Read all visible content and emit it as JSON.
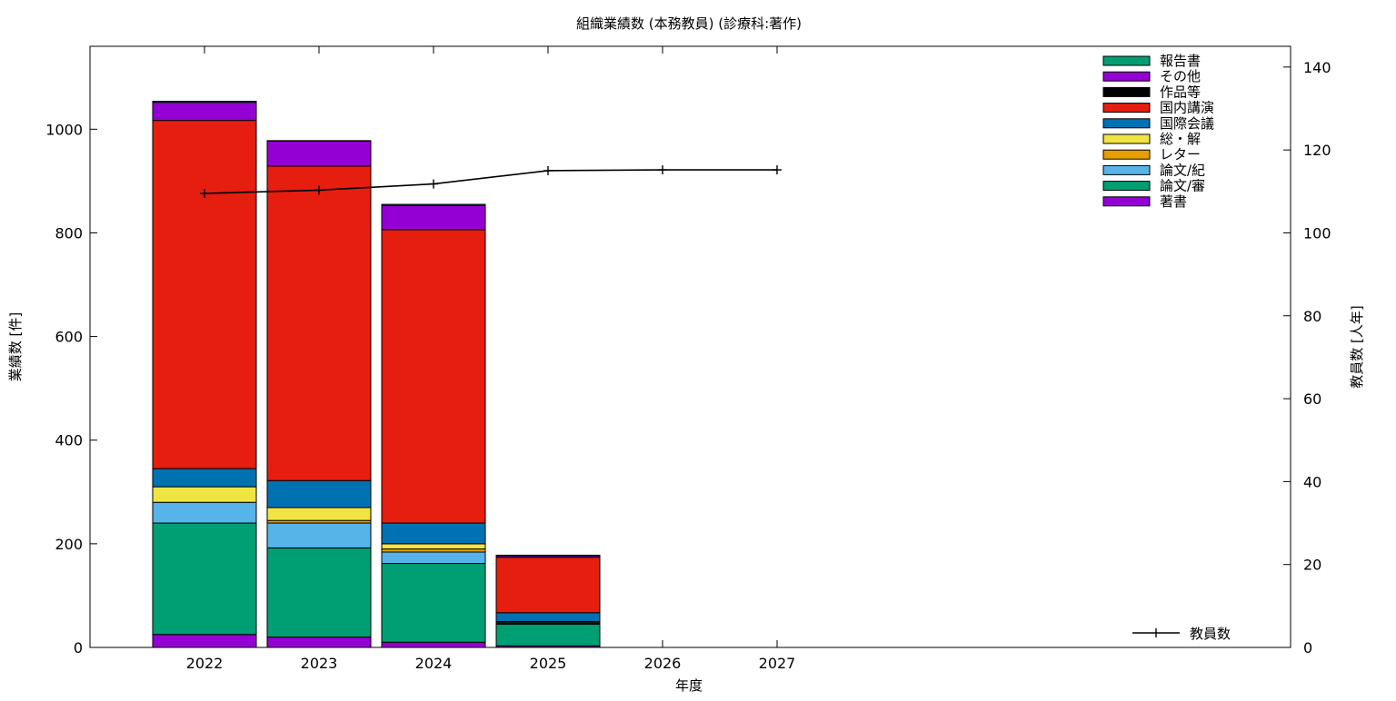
{
  "chart_data": {
    "type": "bar",
    "stacked": true,
    "title": "組織業績数 (本務教員) (診療科:著作)",
    "xlabel": "年度",
    "ylabel": "業績数 [件]",
    "y2label": "教員数 [人年]",
    "ylim": [
      0,
      1160
    ],
    "y2lim": [
      0,
      145
    ],
    "yticks": [
      0,
      200,
      400,
      600,
      800,
      1000
    ],
    "y2ticks": [
      0,
      20,
      40,
      60,
      80,
      100,
      120,
      140
    ],
    "categories": [
      "2022",
      "2023",
      "2024",
      "2025",
      "2026",
      "2027"
    ],
    "legend_position": "top-right",
    "series": [
      {
        "name": "著書",
        "color": "#9400d3",
        "values": [
          25,
          20,
          10,
          3,
          0,
          0
        ]
      },
      {
        "name": "論文/審",
        "color": "#009e73",
        "values": [
          215,
          172,
          152,
          42,
          0,
          0
        ]
      },
      {
        "name": "論文/紀",
        "color": "#56b4e9",
        "values": [
          40,
          48,
          22,
          2,
          0,
          0
        ]
      },
      {
        "name": "レター",
        "color": "#e69f00",
        "values": [
          0,
          5,
          6,
          1,
          0,
          0
        ]
      },
      {
        "name": "総・解",
        "color": "#f0e442",
        "values": [
          30,
          25,
          10,
          2,
          0,
          0
        ]
      },
      {
        "name": "国際会議",
        "color": "#0072b2",
        "values": [
          35,
          52,
          40,
          17,
          0,
          0
        ]
      },
      {
        "name": "国内講演",
        "color": "#e51e10",
        "values": [
          672,
          607,
          566,
          107,
          0,
          0
        ]
      },
      {
        "name": "作品等",
        "color": "#000000",
        "values": [
          0,
          0,
          0,
          0,
          0,
          0
        ]
      },
      {
        "name": "その他",
        "color": "#9400d3",
        "values": [
          35,
          48,
          47,
          3,
          0,
          0
        ]
      },
      {
        "name": "報告書",
        "color": "#009e73",
        "values": [
          2,
          1,
          2,
          1,
          0,
          0
        ]
      }
    ],
    "line_series": {
      "name": "教員数",
      "color": "#000000",
      "axis": "y2",
      "values": [
        109.5,
        110.3,
        111.8,
        115.0,
        115.2,
        115.2
      ]
    }
  }
}
